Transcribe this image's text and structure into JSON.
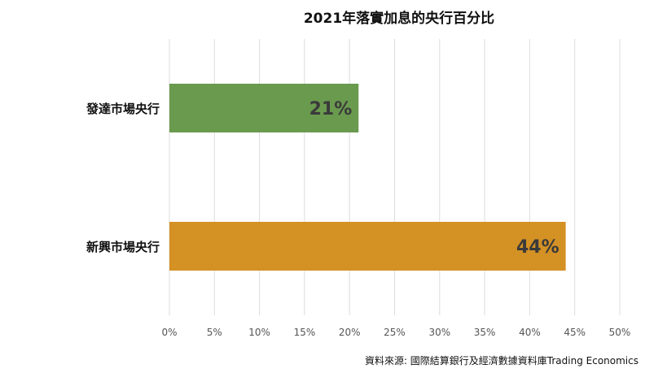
{
  "chart_data": {
    "type": "bar",
    "orientation": "horizontal",
    "title": "2021年落實加息的央行百分比",
    "categories": [
      "發達市場央行",
      "新興市場央行"
    ],
    "values": [
      21,
      44
    ],
    "value_labels": [
      "21%",
      "44%"
    ],
    "xlim": [
      0,
      50
    ],
    "x_ticks": [
      0,
      5,
      10,
      15,
      20,
      25,
      30,
      35,
      40,
      45,
      50
    ],
    "x_tick_labels": [
      "0%",
      "5%",
      "10%",
      "15%",
      "20%",
      "25%",
      "30%",
      "35%",
      "40%",
      "45%",
      "50%"
    ],
    "xlabel": "",
    "ylabel": "",
    "grid": "vertical",
    "legend": "none",
    "colors": [
      "#6a9a4e",
      "#d49124"
    ]
  },
  "source": "資料來源: 國際結算銀行及經濟數據資料庫Trading Economics"
}
